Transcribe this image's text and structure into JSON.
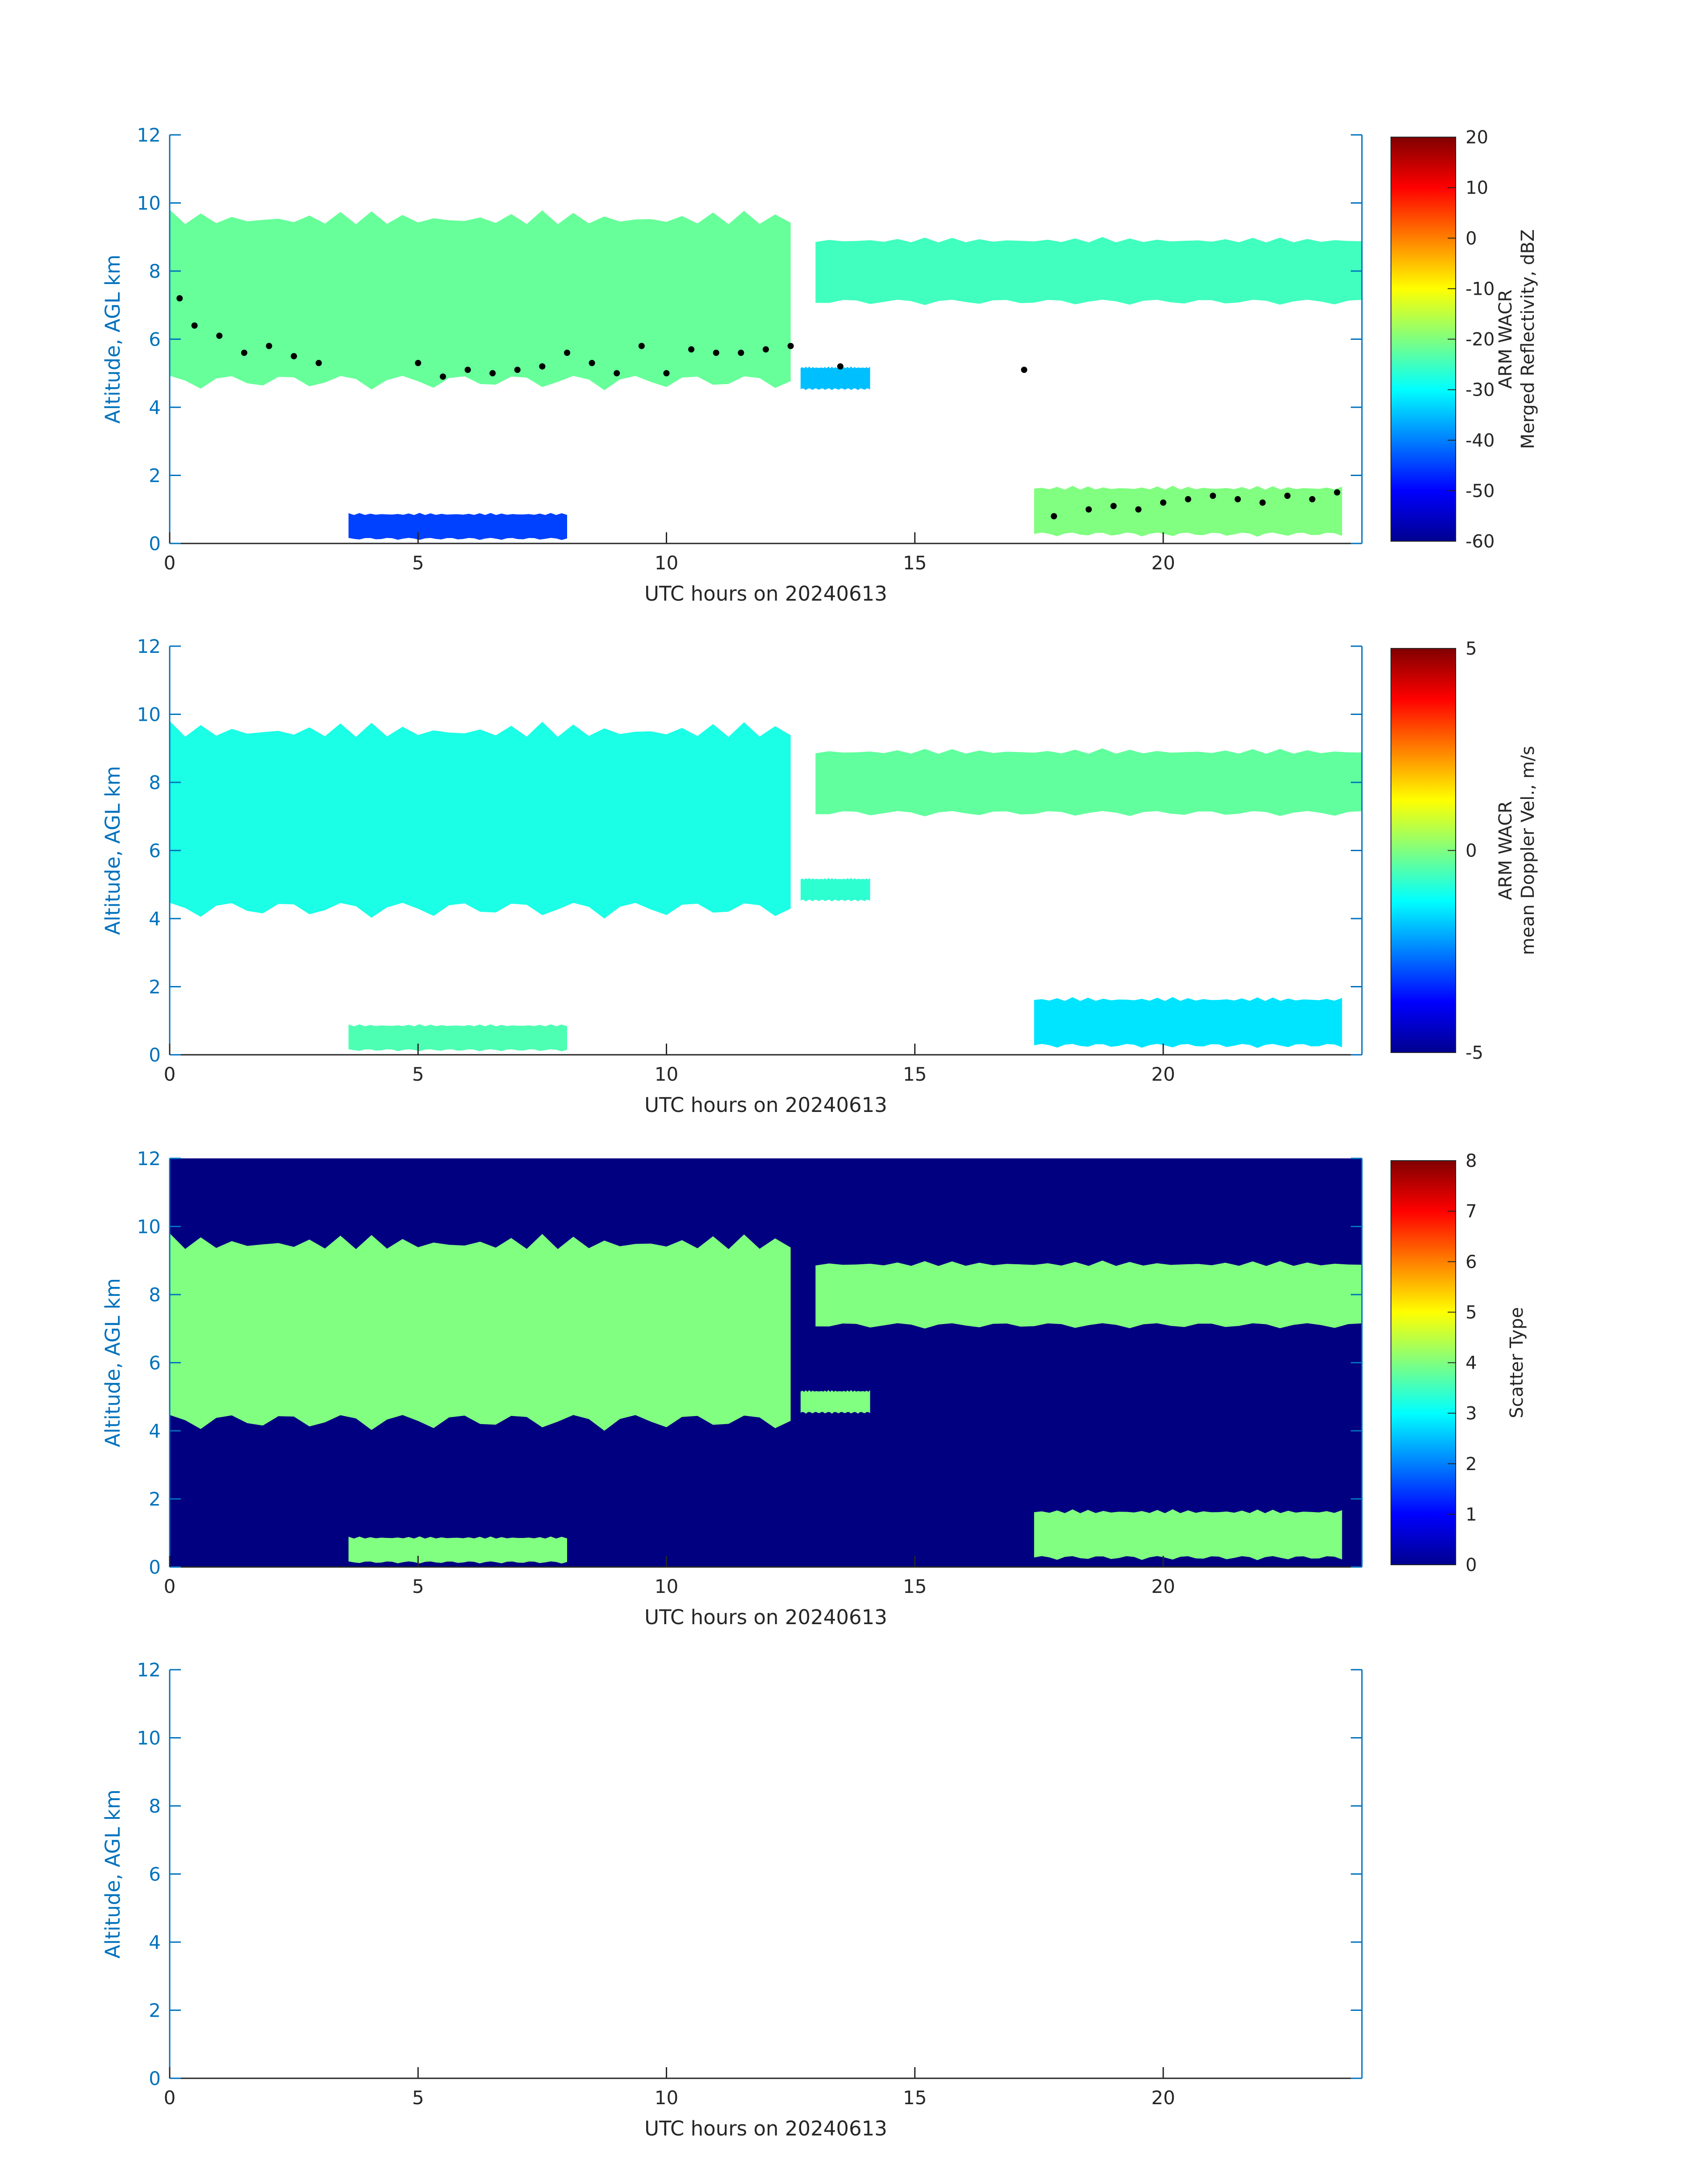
{
  "chart_data": [
    {
      "type": "heatmap",
      "panel": "reflectivity",
      "xlabel": "UTC hours on 20240613",
      "ylabel": "Altitude, AGL km",
      "xlim": [
        0,
        24
      ],
      "ylim": [
        0,
        12
      ],
      "xticks": [
        0,
        5,
        10,
        15,
        20
      ],
      "yticks": [
        0,
        2,
        4,
        6,
        8,
        10,
        12
      ],
      "colorbar": {
        "label_lines": [
          "ARM WACR",
          "Merged Reflectivity, dBZ"
        ],
        "ticks": [
          -60,
          -50,
          -40,
          -30,
          -20,
          -10,
          0,
          10,
          20
        ],
        "range": [
          -60,
          20
        ],
        "colormap": "jet"
      },
      "cloud_layers": [
        {
          "name": "upper layer 0-12.5h",
          "x_start": 0.0,
          "x_end": 12.5,
          "top_km": 9.8,
          "base_km": 4.5,
          "value_dbz": -22
        },
        {
          "name": "mid layer 12.5-14h",
          "x_start": 12.7,
          "x_end": 14.1,
          "top_km": 5.2,
          "base_km": 4.5,
          "value_dbz": -35
        },
        {
          "name": "upper layer 13-24h",
          "x_start": 13.0,
          "x_end": 24.0,
          "top_km": 9.0,
          "base_km": 7.0,
          "value_dbz": -25
        },
        {
          "name": "low layer 3.5-8h",
          "x_start": 3.6,
          "x_end": 8.0,
          "top_km": 0.9,
          "base_km": 0.1,
          "value_dbz": -45
        },
        {
          "name": "low layer 17.5-23.6h",
          "x_start": 17.4,
          "x_end": 23.6,
          "top_km": 1.7,
          "base_km": 0.2,
          "value_dbz": -20
        }
      ],
      "base_markers_km": {
        "x": [
          0.2,
          0.5,
          1.0,
          1.5,
          2.0,
          2.5,
          3.0,
          5.0,
          5.5,
          6.0,
          6.5,
          7.0,
          7.5,
          8.0,
          8.5,
          9.0,
          9.5,
          10.0,
          10.5,
          11.0,
          11.5,
          12.0,
          12.5,
          13.5,
          17.2,
          17.8,
          18.5,
          19.0,
          19.5,
          20.0,
          20.5,
          21.0,
          21.5,
          22.0,
          22.5,
          23.0,
          23.5
        ],
        "y": [
          7.2,
          6.4,
          6.1,
          5.6,
          5.8,
          5.5,
          5.3,
          5.3,
          4.9,
          5.1,
          5.0,
          5.1,
          5.2,
          5.6,
          5.3,
          5.0,
          5.8,
          5.0,
          5.7,
          5.6,
          5.6,
          5.7,
          5.8,
          5.2,
          5.1,
          0.8,
          1.0,
          1.1,
          1.0,
          1.2,
          1.3,
          1.4,
          1.3,
          1.2,
          1.4,
          1.3,
          1.5
        ]
      }
    },
    {
      "type": "heatmap",
      "panel": "doppler",
      "xlabel": "UTC hours on 20240613",
      "ylabel": "Altitude, AGL km",
      "xlim": [
        0,
        24
      ],
      "ylim": [
        0,
        12
      ],
      "xticks": [
        0,
        5,
        10,
        15,
        20
      ],
      "yticks": [
        0,
        2,
        4,
        6,
        8,
        10,
        12
      ],
      "colorbar": {
        "label_lines": [
          "ARM WACR",
          "mean Doppler Vel., m/s"
        ],
        "ticks": [
          -5,
          0,
          5
        ],
        "range": [
          -5,
          5
        ],
        "colormap": "jet"
      },
      "cloud_layers": [
        {
          "name": "upper layer 0-12.5h",
          "x_start": 0.0,
          "x_end": 12.5,
          "top_km": 9.8,
          "base_km": 4.0,
          "value_ms": -1.0
        },
        {
          "name": "mid layer 12.5-14h",
          "x_start": 12.7,
          "x_end": 14.1,
          "top_km": 5.2,
          "base_km": 4.5,
          "value_ms": -0.8
        },
        {
          "name": "upper layer 13-24h",
          "x_start": 13.0,
          "x_end": 24.0,
          "top_km": 9.0,
          "base_km": 7.0,
          "value_ms": -0.3
        },
        {
          "name": "low layer 3.5-8h",
          "x_start": 3.6,
          "x_end": 8.0,
          "top_km": 0.9,
          "base_km": 0.1,
          "value_ms": -0.5
        },
        {
          "name": "low layer 17.5-23.6h",
          "x_start": 17.4,
          "x_end": 23.6,
          "top_km": 1.7,
          "base_km": 0.2,
          "value_ms": -1.5
        }
      ]
    },
    {
      "type": "heatmap",
      "panel": "scatter_type",
      "xlabel": "UTC hours on 20240613",
      "ylabel": "Altitude, AGL km",
      "xlim": [
        0,
        24
      ],
      "ylim": [
        0,
        12
      ],
      "xticks": [
        0,
        5,
        10,
        15,
        20
      ],
      "yticks": [
        0,
        2,
        4,
        6,
        8,
        10,
        12
      ],
      "colorbar": {
        "label_lines": [
          "Scatter Type"
        ],
        "ticks": [
          0,
          1,
          2,
          3,
          4,
          5,
          6,
          7,
          8
        ],
        "range": [
          0,
          8
        ],
        "colormap": "jet"
      },
      "background_value": 0,
      "cloud_value": 4,
      "cloud_layers": [
        {
          "name": "upper layer 0-12.5h",
          "x_start": 0.0,
          "x_end": 12.5,
          "top_km": 9.8,
          "base_km": 4.0
        },
        {
          "name": "mid layer 12.5-14h",
          "x_start": 12.7,
          "x_end": 14.1,
          "top_km": 5.2,
          "base_km": 4.5
        },
        {
          "name": "upper layer 13-24h",
          "x_start": 13.0,
          "x_end": 24.0,
          "top_km": 9.0,
          "base_km": 7.0
        },
        {
          "name": "low layer 3.5-8h",
          "x_start": 3.6,
          "x_end": 8.0,
          "top_km": 0.9,
          "base_km": 0.1
        },
        {
          "name": "low layer 17.5-23.6h",
          "x_start": 17.4,
          "x_end": 23.6,
          "top_km": 1.7,
          "base_km": 0.2
        }
      ]
    },
    {
      "type": "heatmap",
      "panel": "empty",
      "xlabel": "UTC hours on 20240613",
      "ylabel": "Altitude, AGL km",
      "xlim": [
        0,
        24
      ],
      "ylim": [
        0,
        12
      ],
      "xticks": [
        0,
        5,
        10,
        15,
        20
      ],
      "yticks": [
        0,
        2,
        4,
        6,
        8,
        10,
        12
      ]
    }
  ]
}
